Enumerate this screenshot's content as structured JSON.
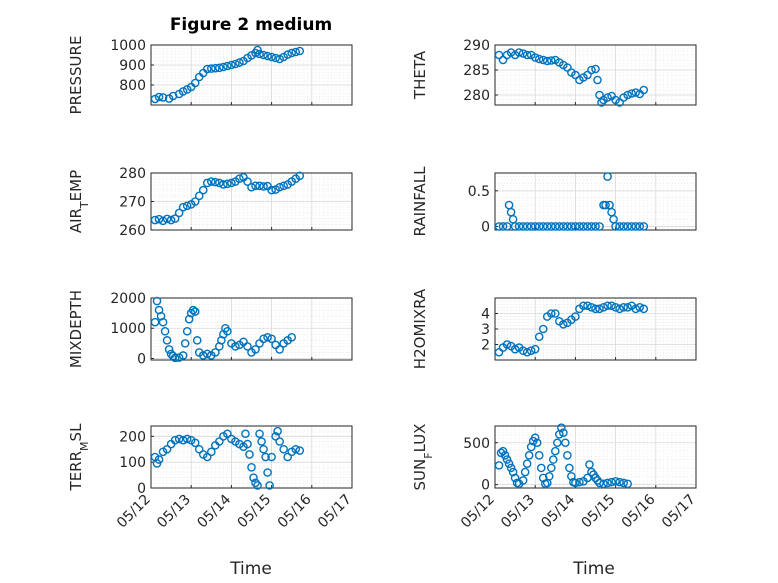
{
  "figure": {
    "title": "Figure 2 medium",
    "xlabel": "Time",
    "marker_color": "#0072BD"
  },
  "chart_data": [
    {
      "type": "scatter",
      "ylabel": "PRESSURE",
      "ylim": [
        700,
        1000
      ],
      "yticks": [
        800,
        900,
        1000
      ],
      "xlim": [
        0,
        5
      ],
      "xticks": [],
      "points": [
        [
          0.1,
          730
        ],
        [
          0.2,
          740
        ],
        [
          0.3,
          738
        ],
        [
          0.45,
          732
        ],
        [
          0.55,
          745
        ],
        [
          0.7,
          755
        ],
        [
          0.8,
          768
        ],
        [
          0.9,
          778
        ],
        [
          1.0,
          790
        ],
        [
          1.1,
          810
        ],
        [
          1.2,
          840
        ],
        [
          1.3,
          860
        ],
        [
          1.4,
          880
        ],
        [
          1.5,
          882
        ],
        [
          1.6,
          884
        ],
        [
          1.7,
          886
        ],
        [
          1.8,
          890
        ],
        [
          1.9,
          895
        ],
        [
          2.0,
          900
        ],
        [
          2.1,
          905
        ],
        [
          2.2,
          912
        ],
        [
          2.3,
          920
        ],
        [
          2.4,
          935
        ],
        [
          2.5,
          948
        ],
        [
          2.6,
          960
        ],
        [
          2.65,
          975
        ],
        [
          2.7,
          955
        ],
        [
          2.8,
          950
        ],
        [
          2.9,
          945
        ],
        [
          3.0,
          940
        ],
        [
          3.1,
          935
        ],
        [
          3.2,
          930
        ],
        [
          3.3,
          940
        ],
        [
          3.4,
          952
        ],
        [
          3.5,
          960
        ],
        [
          3.6,
          965
        ],
        [
          3.7,
          970
        ]
      ]
    },
    {
      "type": "scatter",
      "ylabel": "THETA",
      "ylim": [
        278,
        290
      ],
      "yticks": [
        280,
        285,
        290
      ],
      "xlim": [
        0,
        5
      ],
      "xticks": [],
      "points": [
        [
          0.1,
          288
        ],
        [
          0.2,
          287
        ],
        [
          0.3,
          288
        ],
        [
          0.4,
          288.5
        ],
        [
          0.5,
          288
        ],
        [
          0.6,
          288.5
        ],
        [
          0.7,
          288.3
        ],
        [
          0.8,
          288
        ],
        [
          0.9,
          288
        ],
        [
          1.0,
          287.5
        ],
        [
          1.1,
          287.2
        ],
        [
          1.2,
          287
        ],
        [
          1.3,
          286.8
        ],
        [
          1.4,
          286.9
        ],
        [
          1.5,
          287
        ],
        [
          1.6,
          286.5
        ],
        [
          1.7,
          286
        ],
        [
          1.8,
          285.5
        ],
        [
          1.9,
          284.5
        ],
        [
          2.0,
          284
        ],
        [
          2.1,
          283
        ],
        [
          2.2,
          283.5
        ],
        [
          2.3,
          284
        ],
        [
          2.4,
          285
        ],
        [
          2.5,
          285.2
        ],
        [
          2.55,
          283
        ],
        [
          2.6,
          280
        ],
        [
          2.65,
          278.5
        ],
        [
          2.7,
          279
        ],
        [
          2.8,
          279.5
        ],
        [
          2.9,
          279.8
        ],
        [
          3.0,
          279
        ],
        [
          3.1,
          278.5
        ],
        [
          3.2,
          279.5
        ],
        [
          3.3,
          280
        ],
        [
          3.4,
          280.3
        ],
        [
          3.5,
          280.5
        ],
        [
          3.6,
          280.2
        ],
        [
          3.7,
          281
        ]
      ]
    },
    {
      "type": "scatter",
      "ylabel": "AIR_TEMP",
      "ylim": [
        260,
        280
      ],
      "yticks": [
        260,
        270,
        280
      ],
      "xlim": [
        0,
        5
      ],
      "xticks": [],
      "points": [
        [
          0.1,
          263.5
        ],
        [
          0.2,
          263.8
        ],
        [
          0.3,
          263.2
        ],
        [
          0.4,
          263.9
        ],
        [
          0.5,
          263.5
        ],
        [
          0.6,
          264
        ],
        [
          0.7,
          266
        ],
        [
          0.8,
          268
        ],
        [
          0.9,
          268.5
        ],
        [
          1.0,
          269
        ],
        [
          1.1,
          270
        ],
        [
          1.2,
          272
        ],
        [
          1.3,
          274
        ],
        [
          1.4,
          276.5
        ],
        [
          1.5,
          277
        ],
        [
          1.6,
          276.8
        ],
        [
          1.7,
          276.5
        ],
        [
          1.8,
          276
        ],
        [
          1.9,
          276.2
        ],
        [
          2.0,
          276.5
        ],
        [
          2.1,
          277
        ],
        [
          2.2,
          278
        ],
        [
          2.3,
          278.5
        ],
        [
          2.4,
          277
        ],
        [
          2.5,
          275
        ],
        [
          2.6,
          275.5
        ],
        [
          2.7,
          275.5
        ],
        [
          2.8,
          275.3
        ],
        [
          2.9,
          275.4
        ],
        [
          3.0,
          274
        ],
        [
          3.1,
          274.2
        ],
        [
          3.2,
          275
        ],
        [
          3.3,
          275.5
        ],
        [
          3.4,
          276
        ],
        [
          3.5,
          277
        ],
        [
          3.6,
          278
        ],
        [
          3.7,
          279
        ]
      ]
    },
    {
      "type": "scatter",
      "ylabel": "RAINFALL",
      "ylim": [
        -0.05,
        0.75
      ],
      "yticks": [
        0,
        0.5
      ],
      "xlim": [
        0,
        5
      ],
      "xticks": [],
      "points": [
        [
          0.1,
          0
        ],
        [
          0.2,
          0
        ],
        [
          0.3,
          0
        ],
        [
          0.35,
          0.3
        ],
        [
          0.4,
          0.2
        ],
        [
          0.45,
          0.1
        ],
        [
          0.5,
          0
        ],
        [
          0.6,
          0
        ],
        [
          0.7,
          0
        ],
        [
          0.8,
          0
        ],
        [
          0.9,
          0
        ],
        [
          1.0,
          0
        ],
        [
          1.1,
          0
        ],
        [
          1.2,
          0
        ],
        [
          1.3,
          0
        ],
        [
          1.4,
          0
        ],
        [
          1.5,
          0
        ],
        [
          1.6,
          0
        ],
        [
          1.7,
          0
        ],
        [
          1.8,
          0
        ],
        [
          1.9,
          0
        ],
        [
          2.0,
          0
        ],
        [
          2.1,
          0
        ],
        [
          2.2,
          0
        ],
        [
          2.3,
          0
        ],
        [
          2.4,
          0
        ],
        [
          2.5,
          0
        ],
        [
          2.6,
          0
        ],
        [
          2.7,
          0.3
        ],
        [
          2.75,
          0.3
        ],
        [
          2.8,
          0.7
        ],
        [
          2.85,
          0.3
        ],
        [
          2.9,
          0.2
        ],
        [
          2.95,
          0.1
        ],
        [
          3.0,
          0
        ],
        [
          3.1,
          0
        ],
        [
          3.2,
          0
        ],
        [
          3.3,
          0
        ],
        [
          3.4,
          0
        ],
        [
          3.5,
          0
        ],
        [
          3.6,
          0
        ],
        [
          3.7,
          0
        ]
      ]
    },
    {
      "type": "scatter",
      "ylabel": "MIXDEPTH",
      "ylim": [
        -50,
        2000
      ],
      "yticks": [
        0,
        1000,
        2000
      ],
      "xlim": [
        0,
        5
      ],
      "xticks": [],
      "points": [
        [
          0.1,
          1200
        ],
        [
          0.15,
          1900
        ],
        [
          0.2,
          1600
        ],
        [
          0.25,
          1400
        ],
        [
          0.3,
          1200
        ],
        [
          0.35,
          900
        ],
        [
          0.4,
          600
        ],
        [
          0.45,
          300
        ],
        [
          0.5,
          150
        ],
        [
          0.55,
          80
        ],
        [
          0.6,
          20
        ],
        [
          0.7,
          30
        ],
        [
          0.8,
          100
        ],
        [
          0.85,
          500
        ],
        [
          0.9,
          900
        ],
        [
          0.95,
          1300
        ],
        [
          1.0,
          1500
        ],
        [
          1.05,
          1600
        ],
        [
          1.1,
          1550
        ],
        [
          1.15,
          600
        ],
        [
          1.2,
          200
        ],
        [
          1.3,
          100
        ],
        [
          1.4,
          150
        ],
        [
          1.5,
          100
        ],
        [
          1.6,
          200
        ],
        [
          1.7,
          400
        ],
        [
          1.75,
          600
        ],
        [
          1.8,
          800
        ],
        [
          1.85,
          1000
        ],
        [
          1.9,
          900
        ],
        [
          2.0,
          500
        ],
        [
          2.1,
          400
        ],
        [
          2.2,
          450
        ],
        [
          2.3,
          550
        ],
        [
          2.4,
          400
        ],
        [
          2.5,
          200
        ],
        [
          2.6,
          300
        ],
        [
          2.7,
          500
        ],
        [
          2.8,
          650
        ],
        [
          2.9,
          700
        ],
        [
          3.0,
          650
        ],
        [
          3.1,
          450
        ],
        [
          3.2,
          300
        ],
        [
          3.3,
          500
        ],
        [
          3.4,
          600
        ],
        [
          3.5,
          700
        ]
      ]
    },
    {
      "type": "scatter",
      "ylabel": "H2OMIXRA",
      "ylim": [
        1,
        5
      ],
      "yticks": [
        2,
        3,
        4
      ],
      "xlim": [
        0,
        5
      ],
      "xticks": [],
      "points": [
        [
          0.1,
          1.5
        ],
        [
          0.2,
          1.8
        ],
        [
          0.3,
          2
        ],
        [
          0.4,
          1.9
        ],
        [
          0.5,
          1.7
        ],
        [
          0.6,
          1.8
        ],
        [
          0.7,
          1.6
        ],
        [
          0.8,
          1.5
        ],
        [
          0.9,
          1.6
        ],
        [
          1.0,
          1.7
        ],
        [
          1.1,
          2.5
        ],
        [
          1.2,
          3
        ],
        [
          1.3,
          3.8
        ],
        [
          1.4,
          4
        ],
        [
          1.5,
          4
        ],
        [
          1.6,
          3.5
        ],
        [
          1.7,
          3.3
        ],
        [
          1.8,
          3.4
        ],
        [
          1.9,
          3.6
        ],
        [
          2.0,
          3.8
        ],
        [
          2.1,
          4.3
        ],
        [
          2.2,
          4.5
        ],
        [
          2.3,
          4.5
        ],
        [
          2.4,
          4.4
        ],
        [
          2.5,
          4.3
        ],
        [
          2.6,
          4.3
        ],
        [
          2.7,
          4.4
        ],
        [
          2.8,
          4.5
        ],
        [
          2.9,
          4.5
        ],
        [
          3.0,
          4.4
        ],
        [
          3.1,
          4.3
        ],
        [
          3.2,
          4.4
        ],
        [
          3.3,
          4.4
        ],
        [
          3.4,
          4.5
        ],
        [
          3.5,
          4.3
        ],
        [
          3.6,
          4.4
        ],
        [
          3.7,
          4.3
        ]
      ]
    },
    {
      "type": "scatter",
      "ylabel": "TERR_MSL",
      "ylim": [
        0,
        240
      ],
      "yticks": [
        0,
        100,
        200
      ],
      "xlim": [
        0,
        5
      ],
      "xticks": [
        "05/12",
        "05/13",
        "05/14",
        "05/15",
        "05/16",
        "05/17"
      ],
      "points": [
        [
          0.1,
          120
        ],
        [
          0.15,
          95
        ],
        [
          0.2,
          110
        ],
        [
          0.3,
          140
        ],
        [
          0.4,
          150
        ],
        [
          0.5,
          170
        ],
        [
          0.6,
          185
        ],
        [
          0.7,
          190
        ],
        [
          0.8,
          185
        ],
        [
          0.9,
          190
        ],
        [
          1.0,
          185
        ],
        [
          1.1,
          175
        ],
        [
          1.2,
          150
        ],
        [
          1.3,
          130
        ],
        [
          1.4,
          120
        ],
        [
          1.5,
          140
        ],
        [
          1.6,
          165
        ],
        [
          1.7,
          180
        ],
        [
          1.8,
          200
        ],
        [
          1.9,
          210
        ],
        [
          2.0,
          190
        ],
        [
          2.1,
          180
        ],
        [
          2.2,
          170
        ],
        [
          2.3,
          160
        ],
        [
          2.35,
          210
        ],
        [
          2.4,
          170
        ],
        [
          2.45,
          130
        ],
        [
          2.5,
          80
        ],
        [
          2.55,
          40
        ],
        [
          2.6,
          20
        ],
        [
          2.65,
          10
        ],
        [
          2.7,
          210
        ],
        [
          2.75,
          180
        ],
        [
          2.8,
          150
        ],
        [
          2.85,
          120
        ],
        [
          2.9,
          60
        ],
        [
          2.95,
          10
        ],
        [
          3.0,
          120
        ],
        [
          3.1,
          200
        ],
        [
          3.15,
          220
        ],
        [
          3.2,
          180
        ],
        [
          3.3,
          150
        ],
        [
          3.4,
          120
        ],
        [
          3.5,
          140
        ],
        [
          3.6,
          150
        ],
        [
          3.7,
          145
        ]
      ]
    },
    {
      "type": "scatter",
      "ylabel": "SUN_FLUX",
      "ylim": [
        -40,
        700
      ],
      "yticks": [
        0,
        500
      ],
      "xlim": [
        0,
        5
      ],
      "xticks": [
        "05/12",
        "05/13",
        "05/14",
        "05/15",
        "05/16",
        "05/17"
      ],
      "points": [
        [
          0.1,
          230
        ],
        [
          0.15,
          380
        ],
        [
          0.2,
          400
        ],
        [
          0.25,
          350
        ],
        [
          0.3,
          300
        ],
        [
          0.35,
          250
        ],
        [
          0.4,
          200
        ],
        [
          0.45,
          150
        ],
        [
          0.5,
          80
        ],
        [
          0.55,
          20
        ],
        [
          0.6,
          10
        ],
        [
          0.7,
          50
        ],
        [
          0.75,
          150
        ],
        [
          0.8,
          250
        ],
        [
          0.85,
          350
        ],
        [
          0.9,
          450
        ],
        [
          0.95,
          520
        ],
        [
          1.0,
          560
        ],
        [
          1.05,
          500
        ],
        [
          1.1,
          350
        ],
        [
          1.15,
          200
        ],
        [
          1.2,
          80
        ],
        [
          1.25,
          10
        ],
        [
          1.3,
          20
        ],
        [
          1.35,
          100
        ],
        [
          1.4,
          200
        ],
        [
          1.45,
          300
        ],
        [
          1.5,
          400
        ],
        [
          1.55,
          500
        ],
        [
          1.6,
          600
        ],
        [
          1.65,
          680
        ],
        [
          1.7,
          620
        ],
        [
          1.75,
          500
        ],
        [
          1.8,
          350
        ],
        [
          1.85,
          200
        ],
        [
          1.9,
          100
        ],
        [
          1.95,
          30
        ],
        [
          2.0,
          20
        ],
        [
          2.1,
          30
        ],
        [
          2.2,
          40
        ],
        [
          2.3,
          80
        ],
        [
          2.35,
          240
        ],
        [
          2.4,
          150
        ],
        [
          2.45,
          120
        ],
        [
          2.5,
          80
        ],
        [
          2.55,
          50
        ],
        [
          2.6,
          20
        ],
        [
          2.7,
          10
        ],
        [
          2.8,
          20
        ],
        [
          2.9,
          30
        ],
        [
          3.0,
          40
        ],
        [
          3.1,
          30
        ],
        [
          3.2,
          20
        ],
        [
          3.3,
          10
        ]
      ]
    }
  ]
}
